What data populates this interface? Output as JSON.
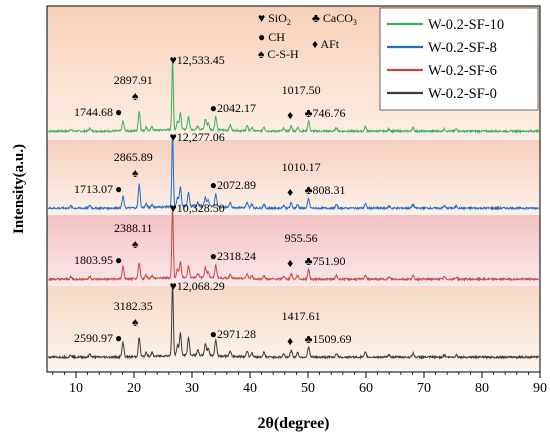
{
  "chart_data": {
    "type": "line",
    "xlabel": "2θ(degree)",
    "ylabel": "Intensity(a.u.)",
    "xlim": [
      5,
      90
    ],
    "x_ticks": [
      10,
      20,
      30,
      40,
      50,
      60,
      70,
      80,
      90
    ],
    "y_ticks": "none",
    "grid": false,
    "legend_position": "top-right",
    "background_bands": [
      {
        "series": "W-0.2-SF-10",
        "color": "#f8d0b8",
        "color_lower": "#fcefe6"
      },
      {
        "series": "W-0.2-SF-8",
        "color": "#f6d0c0",
        "color_lower": "#fdf1ea"
      },
      {
        "series": "W-0.2-SF-6",
        "color": "#f3c2c4",
        "color_lower": "#fae8ea"
      },
      {
        "series": "W-0.2-SF-0",
        "color": "#f6d9c6",
        "color_lower": "#fdf6f0"
      }
    ],
    "phase_key": [
      {
        "symbol": "♥",
        "label": "SiO2"
      },
      {
        "symbol": "♣",
        "label": "CaCO3"
      },
      {
        "symbol": "●",
        "label": "CH"
      },
      {
        "symbol": "♦",
        "label": "AFt"
      },
      {
        "symbol": "♠",
        "label": "C-S-H"
      }
    ],
    "series": [
      {
        "name": "W-0.2-SF-10",
        "color": "#3dae5f",
        "baseline": 0.0,
        "peaks": [
          [
            9.1,
            3
          ],
          [
            12.4,
            4
          ],
          [
            18.1,
            14
          ],
          [
            20.9,
            28
          ],
          [
            22.1,
            5
          ],
          [
            23.1,
            5
          ],
          [
            26.65,
            100
          ],
          [
            27.5,
            12
          ],
          [
            28.0,
            24
          ],
          [
            29.4,
            19
          ],
          [
            31.0,
            6
          ],
          [
            32.3,
            15
          ],
          [
            32.8,
            10
          ],
          [
            34.1,
            19
          ],
          [
            36.6,
            7
          ],
          [
            39.5,
            7
          ],
          [
            40.3,
            5
          ],
          [
            42.4,
            6
          ],
          [
            45.8,
            4
          ],
          [
            47.1,
            7
          ],
          [
            48.2,
            5
          ],
          [
            50.1,
            15
          ],
          [
            54.9,
            5
          ],
          [
            59.9,
            6
          ],
          [
            64.0,
            3
          ],
          [
            68.1,
            5
          ],
          [
            73.5,
            3
          ],
          [
            75.6,
            3
          ]
        ],
        "annotations": [
          {
            "text": "1744.68",
            "marker": "●",
            "x": 18.1
          },
          {
            "text": "2897.91",
            "marker": "♠",
            "x": 20.9
          },
          {
            "text": "12,533.45",
            "marker": "♥",
            "x": 26.65
          },
          {
            "text": "2042.17",
            "marker": "●",
            "x": 34.1
          },
          {
            "text": "1017.50",
            "marker": "♦",
            "x": 47.1
          },
          {
            "text": "746.76",
            "marker": "♣",
            "x": 50.1
          }
        ]
      },
      {
        "name": "W-0.2-SF-8",
        "color": "#1f6fc4",
        "baseline": 0.0,
        "peaks": [
          [
            9.1,
            3
          ],
          [
            12.4,
            4
          ],
          [
            18.1,
            16
          ],
          [
            20.9,
            33
          ],
          [
            22.1,
            5
          ],
          [
            23.1,
            4
          ],
          [
            26.65,
            100
          ],
          [
            27.5,
            12
          ],
          [
            28.0,
            28
          ],
          [
            29.4,
            19
          ],
          [
            31.0,
            6
          ],
          [
            32.3,
            13
          ],
          [
            32.8,
            9
          ],
          [
            34.1,
            18
          ],
          [
            36.6,
            6
          ],
          [
            39.5,
            7
          ],
          [
            40.3,
            5
          ],
          [
            42.4,
            5
          ],
          [
            45.8,
            4
          ],
          [
            47.1,
            7
          ],
          [
            48.2,
            5
          ],
          [
            50.1,
            13
          ],
          [
            54.9,
            5
          ],
          [
            59.9,
            6
          ],
          [
            64.0,
            3
          ],
          [
            68.1,
            5
          ],
          [
            73.5,
            3
          ],
          [
            75.6,
            3
          ]
        ],
        "annotations": [
          {
            "text": "1713.07",
            "marker": "●",
            "x": 18.1
          },
          {
            "text": "2865.89",
            "marker": "♠",
            "x": 20.9
          },
          {
            "text": "12,277.06",
            "marker": "♥",
            "x": 26.65
          },
          {
            "text": "2072.89",
            "marker": "●",
            "x": 34.1
          },
          {
            "text": "1010.17",
            "marker": "♦",
            "x": 47.1
          },
          {
            "text": "808.31",
            "marker": "♣",
            "x": 50.1
          }
        ]
      },
      {
        "name": "W-0.2-SF-6",
        "color": "#c4484a",
        "baseline": 0.0,
        "peaks": [
          [
            9.1,
            3
          ],
          [
            12.4,
            4
          ],
          [
            18.1,
            18
          ],
          [
            20.9,
            22
          ],
          [
            22.1,
            5
          ],
          [
            23.1,
            4
          ],
          [
            26.65,
            100
          ],
          [
            27.5,
            12
          ],
          [
            28.0,
            22
          ],
          [
            29.4,
            16
          ],
          [
            31.0,
            6
          ],
          [
            32.3,
            15
          ],
          [
            32.8,
            9
          ],
          [
            34.1,
            18
          ],
          [
            36.6,
            6
          ],
          [
            39.5,
            7
          ],
          [
            40.3,
            5
          ],
          [
            42.4,
            5
          ],
          [
            45.8,
            4
          ],
          [
            47.1,
            7
          ],
          [
            48.2,
            5
          ],
          [
            50.1,
            14
          ],
          [
            54.9,
            5
          ],
          [
            59.9,
            6
          ],
          [
            64.0,
            3
          ],
          [
            68.1,
            5
          ],
          [
            73.5,
            3
          ],
          [
            75.6,
            3
          ]
        ],
        "annotations": [
          {
            "text": "1803.95",
            "marker": "●",
            "x": 18.1
          },
          {
            "text": "2388.11",
            "marker": "♠",
            "x": 20.9
          },
          {
            "text": "10,328.50",
            "marker": "♥",
            "x": 26.65
          },
          {
            "text": "2318.24",
            "marker": "●",
            "x": 34.1
          },
          {
            "text": "955.56",
            "marker": "♦",
            "x": 47.1
          },
          {
            "text": "751.90",
            "marker": "♣",
            "x": 50.1
          }
        ]
      },
      {
        "name": "W-0.2-SF-0",
        "color": "#3c3c3c",
        "baseline": 0.0,
        "peaks": [
          [
            9.1,
            3
          ],
          [
            12.4,
            4
          ],
          [
            18.1,
            20
          ],
          [
            20.9,
            26
          ],
          [
            22.1,
            5
          ],
          [
            23.1,
            5
          ],
          [
            26.65,
            100
          ],
          [
            27.5,
            14
          ],
          [
            28.0,
            30
          ],
          [
            29.4,
            24
          ],
          [
            31.0,
            7
          ],
          [
            32.3,
            16
          ],
          [
            32.8,
            10
          ],
          [
            34.1,
            22
          ],
          [
            36.6,
            6
          ],
          [
            39.5,
            8
          ],
          [
            40.3,
            5
          ],
          [
            42.4,
            6
          ],
          [
            45.8,
            4
          ],
          [
            47.1,
            9
          ],
          [
            48.2,
            6
          ],
          [
            50.1,
            14
          ],
          [
            54.9,
            5
          ],
          [
            59.9,
            6
          ],
          [
            64.0,
            3
          ],
          [
            68.1,
            5
          ],
          [
            73.5,
            3
          ],
          [
            75.6,
            3
          ]
        ],
        "annotations": [
          {
            "text": "2590.97",
            "marker": "●",
            "x": 18.1
          },
          {
            "text": "3182.35",
            "marker": "♠",
            "x": 20.9
          },
          {
            "text": "12,068.29",
            "marker": "♥",
            "x": 26.65
          },
          {
            "text": "2971.28",
            "marker": "●",
            "x": 34.1
          },
          {
            "text": "1417.61",
            "marker": "♦",
            "x": 47.1
          },
          {
            "text": "1509.69",
            "marker": "♣",
            "x": 50.1
          }
        ]
      }
    ]
  }
}
